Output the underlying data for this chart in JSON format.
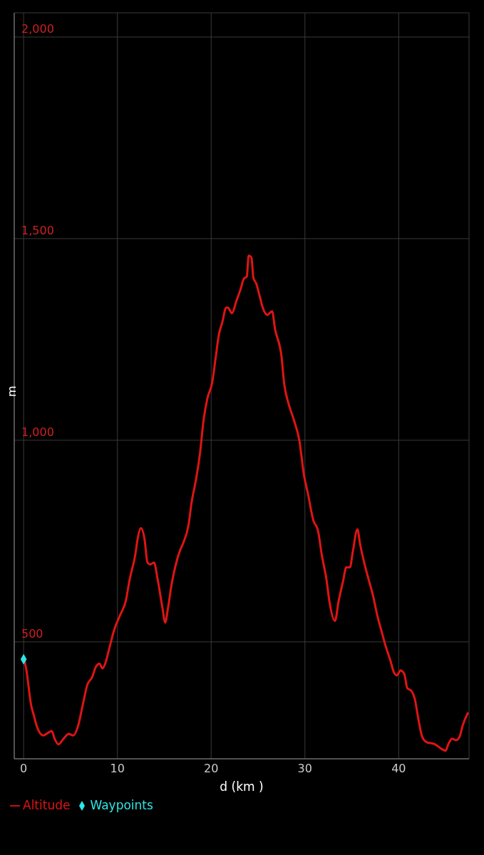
{
  "chart_data": {
    "type": "line",
    "xlabel": "d (km )",
    "ylabel": "m",
    "xlim": [
      -1,
      47.5
    ],
    "ylim": [
      210,
      2060
    ],
    "xticks": [
      0,
      10,
      20,
      30,
      40
    ],
    "yticks": [
      {
        "value": 500,
        "label": "500"
      },
      {
        "value": 1000,
        "label": "1,000"
      },
      {
        "value": 1500,
        "label": "1,500"
      },
      {
        "value": 2000,
        "label": "2,000"
      }
    ],
    "grid": true,
    "legend": "bottom left",
    "series": [
      {
        "name": "Altitude",
        "type": "line",
        "color": "#e01414",
        "marker": "none",
        "x": [
          0,
          0.3,
          0.8,
          1.1,
          1.4,
          2.1,
          2.5,
          3.0,
          3.3,
          3.7,
          4.3,
          4.8,
          5.3,
          5.8,
          6.3,
          6.8,
          7.3,
          7.7,
          8.1,
          8.4,
          8.7,
          9.2,
          9.7,
          10.3,
          10.9,
          11.3,
          11.9,
          12.2,
          12.5,
          12.9,
          13.2,
          13.5,
          13.9,
          14.3,
          14.8,
          15.1,
          15.4,
          15.8,
          16.2,
          16.7,
          17.0,
          17.6,
          17.9,
          18.4,
          18.8,
          19.2,
          19.6,
          20.1,
          20.5,
          20.8,
          21.2,
          21.6,
          21.8,
          22.2,
          22.7,
          23.1,
          23.5,
          23.8,
          24.0,
          24.3,
          24.5,
          24.8,
          25.2,
          25.5,
          26.0,
          26.5,
          26.8,
          27.5,
          27.8,
          28.2,
          28.8,
          29.4,
          29.9,
          30.3,
          30.9,
          31.4,
          31.8,
          32.3,
          32.6,
          33.2,
          33.6,
          34.1,
          34.4,
          34.8,
          35.1,
          35.6,
          35.9,
          36.4,
          36.8,
          37.3,
          37.7,
          38.2,
          38.6,
          39.1,
          39.5,
          39.8,
          40.2,
          40.6,
          40.9,
          41.4,
          41.7,
          42.1,
          42.5,
          43.0,
          43.8,
          44.6,
          45.0,
          45.3,
          45.7,
          46.1,
          46.5,
          46.8,
          47.4
        ],
        "values": [
          464,
          429,
          343,
          317,
          291,
          268,
          273,
          279,
          260,
          246,
          261,
          272,
          268,
          291,
          343,
          394,
          412,
          438,
          446,
          434,
          446,
          490,
          533,
          567,
          602,
          654,
          715,
          761,
          782,
          754,
          697,
          692,
          697,
          654,
          585,
          548,
          585,
          645,
          689,
          728,
          744,
          792,
          844,
          905,
          966,
          1052,
          1104,
          1142,
          1208,
          1259,
          1294,
          1329,
          1329,
          1315,
          1346,
          1372,
          1401,
          1406,
          1458,
          1453,
          1403,
          1389,
          1355,
          1329,
          1311,
          1320,
          1277,
          1208,
          1138,
          1095,
          1052,
          1000,
          913,
          870,
          801,
          775,
          715,
          654,
          602,
          552,
          602,
          654,
          685,
          685,
          723,
          779,
          740,
          689,
          654,
          611,
          567,
          524,
          490,
          455,
          424,
          417,
          429,
          420,
          386,
          377,
          360,
          308,
          265,
          251,
          247,
          234,
          230,
          247,
          260,
          256,
          265,
          291,
          325
        ]
      },
      {
        "name": "Waypoints",
        "type": "scatter",
        "color": "#2ee6e6",
        "marker": "diamond",
        "x": [
          0
        ],
        "values": [
          457
        ]
      }
    ]
  }
}
